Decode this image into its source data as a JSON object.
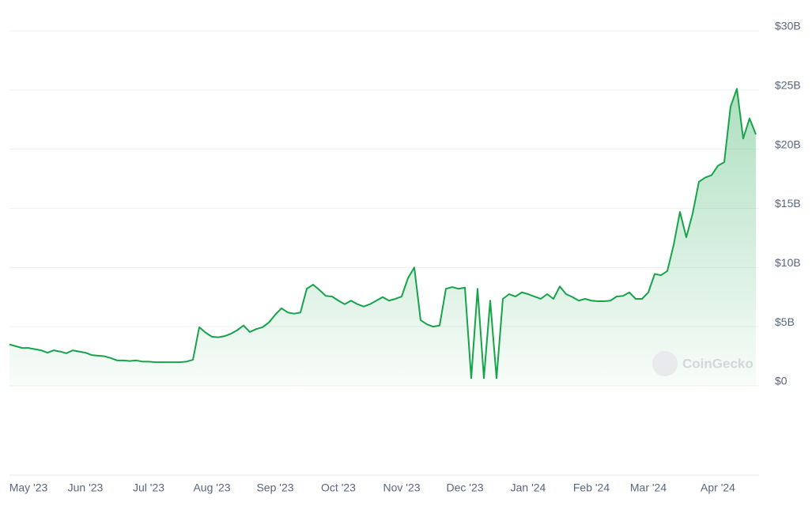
{
  "chart_data": {
    "type": "area",
    "color": "#16a34a",
    "watermark": "CoinGecko",
    "ylim": [
      0,
      30
    ],
    "yticks": [
      {
        "value": 0,
        "label": "$0"
      },
      {
        "value": 5,
        "label": "$5B"
      },
      {
        "value": 10,
        "label": "$10B"
      },
      {
        "value": 15,
        "label": "$15B"
      },
      {
        "value": 20,
        "label": "$20B"
      },
      {
        "value": 25,
        "label": "$25B"
      },
      {
        "value": 30,
        "label": "$30B"
      }
    ],
    "grid": true,
    "categories": [
      null,
      null,
      null,
      "May '23",
      null,
      null,
      null,
      null,
      null,
      null,
      null,
      null,
      "Jun '23",
      null,
      null,
      null,
      null,
      null,
      null,
      null,
      null,
      null,
      "Jul '23",
      null,
      null,
      null,
      null,
      null,
      null,
      null,
      null,
      null,
      "Aug '23",
      null,
      null,
      null,
      null,
      null,
      null,
      null,
      null,
      null,
      "Sep '23",
      null,
      null,
      null,
      null,
      null,
      null,
      null,
      null,
      null,
      "Oct '23",
      null,
      null,
      null,
      null,
      null,
      null,
      null,
      null,
      null,
      "Nov '23",
      null,
      null,
      null,
      null,
      null,
      null,
      null,
      null,
      null,
      "Dec '23",
      null,
      null,
      null,
      null,
      null,
      null,
      null,
      null,
      null,
      "Jan '24",
      null,
      null,
      null,
      null,
      null,
      null,
      null,
      null,
      null,
      "Feb '24",
      null,
      null,
      null,
      null,
      null,
      null,
      null,
      null,
      "Mar '24",
      null,
      null,
      null,
      null,
      null,
      null,
      null,
      null,
      null,
      null,
      "Apr '24",
      null,
      null,
      null,
      null,
      null,
      null
    ],
    "values": [
      3.5,
      3.35,
      3.2,
      3.2,
      3.1,
      3.0,
      2.8,
      3.0,
      2.9,
      2.75,
      3.0,
      2.9,
      2.8,
      2.6,
      2.55,
      2.5,
      2.35,
      2.15,
      2.15,
      2.1,
      2.15,
      2.05,
      2.05,
      2.0,
      2.0,
      2.0,
      2.0,
      2.0,
      2.05,
      2.2,
      4.95,
      4.5,
      4.15,
      4.1,
      4.2,
      4.4,
      4.7,
      5.1,
      4.55,
      4.8,
      4.95,
      5.35,
      6.0,
      6.55,
      6.2,
      6.1,
      6.2,
      8.2,
      8.55,
      8.1,
      7.6,
      7.55,
      7.2,
      6.9,
      7.2,
      6.9,
      6.7,
      6.9,
      7.2,
      7.5,
      7.2,
      7.35,
      7.55,
      9.1,
      10.0,
      5.55,
      5.2,
      5.0,
      5.1,
      8.2,
      8.35,
      8.2,
      8.3,
      0.65,
      8.2,
      0.65,
      7.2,
      0.65,
      7.35,
      7.75,
      7.55,
      7.9,
      7.75,
      7.55,
      7.35,
      7.75,
      7.35,
      8.4,
      7.75,
      7.5,
      7.2,
      7.35,
      7.2,
      7.15,
      7.15,
      7.2,
      7.55,
      7.6,
      7.9,
      7.35,
      7.35,
      7.9,
      9.45,
      9.35,
      9.7,
      11.9,
      14.7,
      12.55,
      14.55,
      17.25,
      17.6,
      17.8,
      18.6,
      18.9,
      23.6,
      25.1,
      20.9,
      22.6,
      21.25
    ]
  }
}
